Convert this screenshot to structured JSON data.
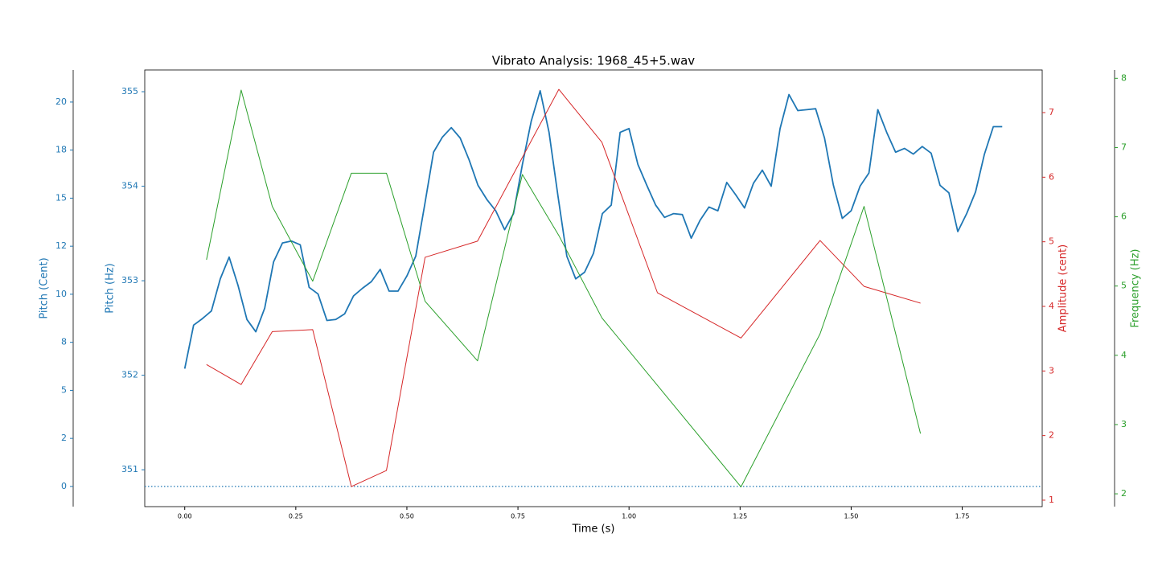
{
  "chart_data": {
    "type": "line",
    "title": "Vibrato Analysis: 1968_45+5.wav",
    "xlabel": "Time (s)",
    "xlim": [
      -0.09,
      1.93
    ],
    "xticks": [
      {
        "value": 0,
        "label": "0.00"
      },
      {
        "value": 0.25,
        "label": "0.25"
      },
      {
        "value": 0.5,
        "label": "0.50"
      },
      {
        "value": 0.75,
        "label": "0.75"
      },
      {
        "value": 1,
        "label": "1.00"
      },
      {
        "value": 1.25,
        "label": "1.25"
      },
      {
        "value": 1.5,
        "label": "1.50"
      },
      {
        "value": 1.75,
        "label": "1.75"
      }
    ],
    "y_axes": [
      {
        "label": "Pitch (Cent)",
        "color": "#1f77b4",
        "ylim": [
          -1.05,
          21.67
        ],
        "yticks": [
          0,
          {
            "value": 2.5,
            "label": "2"
          },
          5,
          {
            "value": 7.5,
            "label": "8"
          },
          10,
          {
            "value": 12.5,
            "label": "12"
          },
          15,
          {
            "value": 17.5,
            "label": "18"
          },
          20
        ]
      },
      {
        "label": "Pitch (Hz)",
        "color": "#1f77b4",
        "ylim": [
          350.61,
          355.23
        ],
        "yticks": [
          351,
          352,
          353,
          354,
          355
        ]
      },
      {
        "label": "Amplitude (cent)",
        "color": "#d62728",
        "ylim": [
          0.9,
          7.66
        ],
        "yticks": [
          1,
          2,
          3,
          4,
          5,
          6,
          7
        ]
      },
      {
        "label": "Frequency (Hz)",
        "color": "#2ca02c",
        "ylim": [
          1.815,
          8.12
        ],
        "yticks": [
          2,
          3,
          4,
          5,
          6,
          7,
          8
        ]
      }
    ],
    "hline": {
      "axis": 0,
      "value": 0,
      "color": "#1f77b4",
      "style": "dotted"
    },
    "series": [
      {
        "axis": 1,
        "color": "#1f77b4",
        "width": 1.8,
        "x": [
          0,
          0.02,
          0.04,
          0.06,
          0.08,
          0.1,
          0.12,
          0.14,
          0.16,
          0.18,
          0.2,
          0.22,
          0.24,
          0.26,
          0.28,
          0.3,
          0.32,
          0.34,
          0.36,
          0.38,
          0.4,
          0.42,
          0.44,
          0.46,
          0.48,
          0.5,
          0.52,
          0.54,
          0.56,
          0.58,
          0.6,
          0.62,
          0.64,
          0.66,
          0.68,
          0.7,
          0.72,
          0.74,
          0.76,
          0.78,
          0.8,
          0.82,
          0.84,
          0.86,
          0.88,
          0.9,
          0.92,
          0.94,
          0.96,
          0.98,
          1,
          1.02,
          1.04,
          1.06,
          1.08,
          1.1,
          1.12,
          1.14,
          1.16,
          1.18,
          1.2,
          1.22,
          1.24,
          1.26,
          1.28,
          1.3,
          1.32,
          1.34,
          1.36,
          1.38,
          1.4,
          1.42,
          1.44,
          1.46,
          1.48,
          1.5,
          1.52,
          1.54,
          1.56,
          1.58,
          1.6,
          1.62,
          1.64,
          1.66,
          1.68,
          1.7,
          1.72,
          1.74,
          1.76,
          1.78,
          1.8,
          1.82,
          1.84
        ],
        "values": [
          352.07,
          352.53,
          352.6,
          352.68,
          353.02,
          353.25,
          352.95,
          352.59,
          352.46,
          352.71,
          353.2,
          353.4,
          353.42,
          353.38,
          352.93,
          352.86,
          352.58,
          352.59,
          352.65,
          352.84,
          352.92,
          352.99,
          353.12,
          352.89,
          352.89,
          353.05,
          353.26,
          353.8,
          354.36,
          354.52,
          354.62,
          354.51,
          354.28,
          354.01,
          353.86,
          353.74,
          353.54,
          353.71,
          354.23,
          354.69,
          355.01,
          354.57,
          353.9,
          353.26,
          353.02,
          353.09,
          353.29,
          353.71,
          353.8,
          354.57,
          354.61,
          354.23,
          354.01,
          353.8,
          353.67,
          353.71,
          353.7,
          353.45,
          353.64,
          353.78,
          353.74,
          354.04,
          353.91,
          353.77,
          354.03,
          354.17,
          354,
          354.61,
          354.97,
          354.8,
          354.81,
          354.82,
          354.51,
          354.01,
          353.66,
          353.74,
          354,
          354.14,
          354.81,
          354.57,
          354.36,
          354.4,
          354.34,
          354.42,
          354.35,
          354.01,
          353.93,
          353.52,
          353.71,
          353.94,
          354.34,
          354.63,
          354.63
        ]
      },
      {
        "axis": 2,
        "color": "#d62728",
        "width": 1,
        "x": [
          0.049,
          0.127,
          0.197,
          0.288,
          0.375,
          0.454,
          0.541,
          0.659,
          0.842,
          0.939,
          1.064,
          1.252,
          1.43,
          1.529,
          1.656
        ],
        "values": [
          3.1,
          2.79,
          3.61,
          3.64,
          1.21,
          1.46,
          4.76,
          5.01,
          7.36,
          6.54,
          4.21,
          3.51,
          5.02,
          4.31,
          4.05
        ]
      },
      {
        "axis": 3,
        "color": "#2ca02c",
        "width": 1,
        "x": [
          0.049,
          0.127,
          0.197,
          0.288,
          0.375,
          0.454,
          0.541,
          0.659,
          0.76,
          0.842,
          0.939,
          1.252,
          1.43,
          1.529,
          1.656
        ],
        "values": [
          5.38,
          7.83,
          6.15,
          5.07,
          6.63,
          6.63,
          4.78,
          3.92,
          6.61,
          5.73,
          4.54,
          2.1,
          4.31,
          6.15,
          2.87
        ]
      }
    ]
  }
}
